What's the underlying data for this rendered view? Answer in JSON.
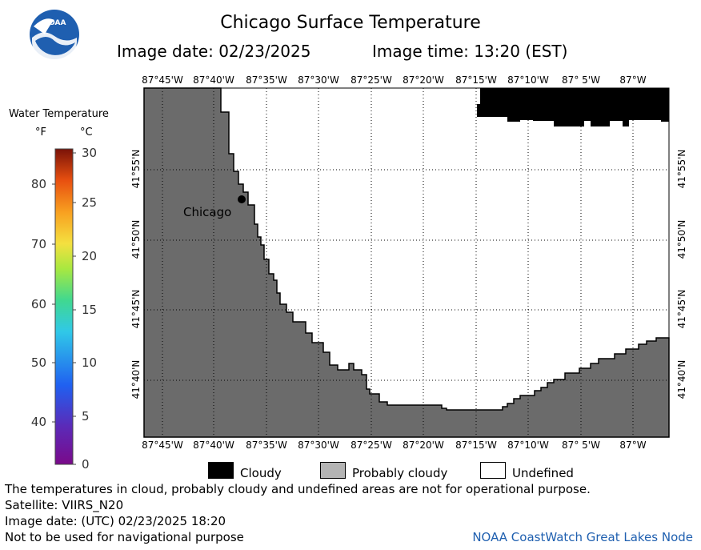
{
  "header": {
    "title": "Chicago Surface Temperature",
    "date_text": "Image date: 02/23/2025",
    "time_text": "Image time: 13:20 (EST)"
  },
  "logo": {
    "text": "NOAA"
  },
  "scale": {
    "title": "Water Temperature",
    "unit_f": "°F",
    "unit_c": "°C",
    "f_ticks": [
      "80",
      "70",
      "60",
      "50",
      "40"
    ],
    "c_ticks": [
      "30",
      "25",
      "20",
      "15",
      "10",
      "5",
      "0"
    ]
  },
  "map": {
    "lon_labels": [
      "87°45'W",
      "87°40'W",
      "87°35'W",
      "87°30'W",
      "87°25'W",
      "87°20'W",
      "87°15'W",
      "87°10'W",
      "87° 5'W",
      "87°W"
    ],
    "lat_labels": [
      "41°55'N",
      "41°50'N",
      "41°45'N",
      "41°40'N"
    ],
    "city_label": "Chicago",
    "land_color": "#6b6b6b",
    "cloud_color": "#000000",
    "undefined_color": "#ffffff"
  },
  "legend": {
    "cloudy": "Cloudy",
    "probably_cloudy": "Probably cloudy",
    "undefined": "Undefined"
  },
  "footer": {
    "note": "The temperatures in cloud, probably cloudy and undefined areas are not for operational purpose.",
    "satellite": "Satellite: VIIRS_N20",
    "utc_date": "Image date: (UTC) 02/23/2025  18:20",
    "nav_warning": "Not to be used for navigational purpose",
    "credit": "NOAA CoastWatch Great Lakes Node"
  }
}
